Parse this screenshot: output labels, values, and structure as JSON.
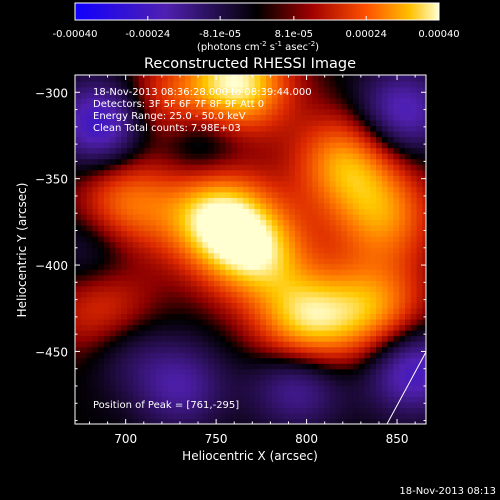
{
  "colorbar": {
    "ticks": [
      "-0.00040",
      "-0.00024",
      "-8.1e-05",
      "8.1e-05",
      "0.00024",
      "0.00040"
    ],
    "tick_values": [
      -0.0004,
      -0.00024,
      -8.1e-05,
      8.1e-05,
      0.00024,
      0.0004
    ],
    "range": [
      -0.0004,
      0.0004
    ],
    "unit_main": "(photons cm",
    "unit_sup1": "-2",
    "unit_mid": " s",
    "unit_sup2": "-1",
    "unit_mid2": " asec",
    "unit_sup3": "-2",
    "unit_close": ")"
  },
  "chart_data": {
    "type": "heatmap",
    "title": "Reconstructed RHESSI Image",
    "xlabel": "Heliocentric X (arcsec)",
    "ylabel": "Heliocentric Y (arcsec)",
    "xlim": [
      672,
      866
    ],
    "ylim": [
      -492,
      -290
    ],
    "x_ticks": [
      700,
      750,
      800,
      850
    ],
    "y_ticks": [
      -300,
      -350,
      -400,
      -450
    ],
    "x_tick_labels": [
      "700",
      "750",
      "800",
      "850"
    ],
    "y_tick_labels": [
      "−300",
      "−350",
      "−400",
      "−450"
    ],
    "hot_spots": [
      {
        "x": 761,
        "y": -295,
        "value": 0.0004
      },
      {
        "x": 750,
        "y": -372,
        "value": 0.00036
      },
      {
        "x": 772,
        "y": -392,
        "value": 0.00032
      },
      {
        "x": 800,
        "y": -432,
        "value": 0.00034
      },
      {
        "x": 822,
        "y": -340,
        "value": 0.00028
      },
      {
        "x": 838,
        "y": -425,
        "value": 0.00026
      },
      {
        "x": 700,
        "y": -365,
        "value": 0.00024
      },
      {
        "x": 690,
        "y": -430,
        "value": 0.00022
      },
      {
        "x": 842,
        "y": -372,
        "value": 0.00024
      },
      {
        "x": 722,
        "y": -310,
        "value": 0.0002
      }
    ],
    "cold_spots": [
      {
        "x": 688,
        "y": -318,
        "value": -0.0003
      },
      {
        "x": 740,
        "y": -325,
        "value": -0.00018
      },
      {
        "x": 852,
        "y": -312,
        "value": -0.00024
      },
      {
        "x": 858,
        "y": -460,
        "value": -0.00026
      },
      {
        "x": 730,
        "y": -470,
        "value": -0.00018
      },
      {
        "x": 795,
        "y": -468,
        "value": -0.0002
      },
      {
        "x": 698,
        "y": -445,
        "value": -0.00016
      },
      {
        "x": 683,
        "y": -390,
        "value": -0.00012
      }
    ]
  },
  "annotations": {
    "line1": "18-Nov-2013 08:36:28.000 to 08:39:44.000",
    "line2": "Detectors: 3F 5F 6F 7F 8F 9F  Att 0",
    "line3": "Energy Range: 25.0 - 50.0 keV",
    "line4": "Clean    Total counts: 7.98E+03",
    "peak": "Position of Peak = [761,-295]"
  },
  "footer_timestamp": "18-Nov-2013 08:13"
}
